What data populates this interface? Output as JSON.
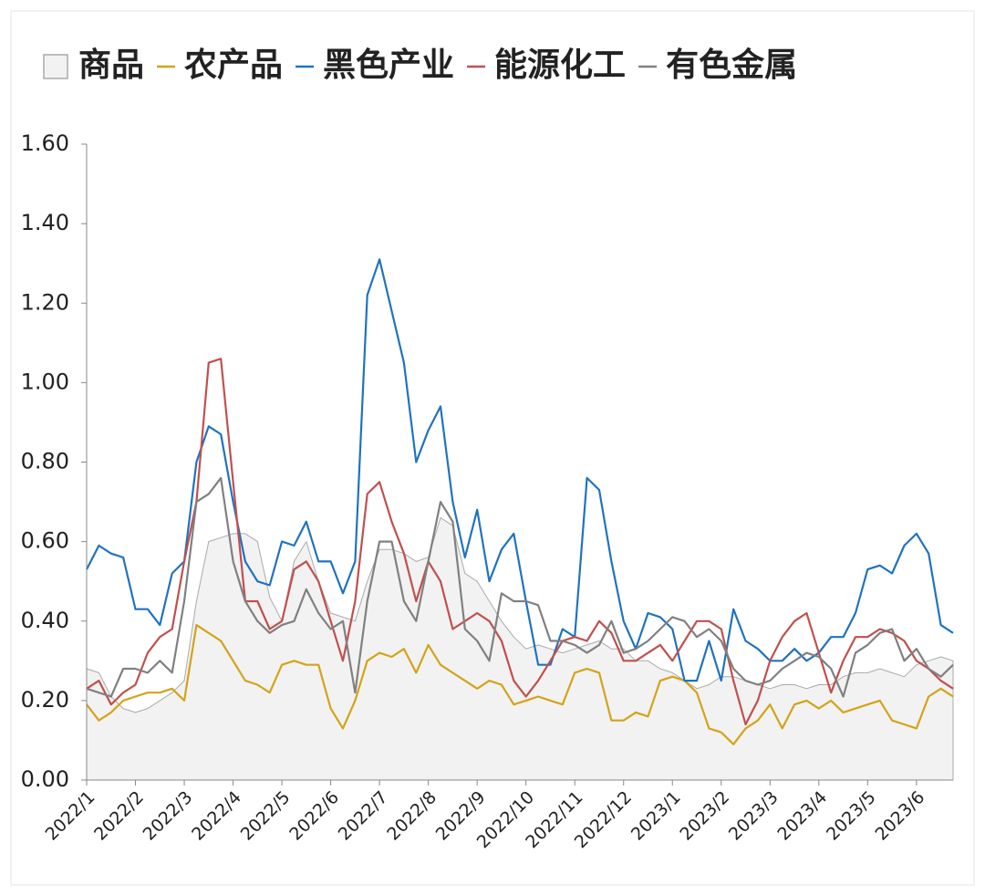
{
  "chart_data": {
    "type": "line",
    "categories": [
      "2022/1",
      null,
      null,
      null,
      "2022/2",
      null,
      null,
      null,
      "2022/3",
      null,
      null,
      null,
      "2022/4",
      null,
      null,
      null,
      "2022/5",
      null,
      null,
      null,
      "2022/6",
      null,
      null,
      null,
      "2022/7",
      null,
      null,
      null,
      "2022/8",
      null,
      null,
      null,
      "2022/9",
      null,
      null,
      null,
      "2022/10",
      null,
      null,
      null,
      "2022/11",
      null,
      null,
      null,
      "2022/12",
      null,
      null,
      null,
      "2023/1",
      null,
      null,
      null,
      "2023/2",
      null,
      null,
      null,
      "2023/3",
      null,
      null,
      null,
      "2023/4",
      null,
      null,
      null,
      "2023/5",
      null,
      null,
      null,
      "2023/6",
      null,
      null,
      null
    ],
    "series": [
      {
        "name": "商品",
        "kind": "area",
        "color": "#aaaaaa",
        "fill": "#f2f2f2",
        "values": [
          0.28,
          0.27,
          0.21,
          0.18,
          0.17,
          0.18,
          0.2,
          0.22,
          0.25,
          0.45,
          0.6,
          0.61,
          0.62,
          0.62,
          0.6,
          0.46,
          0.4,
          0.55,
          0.6,
          0.5,
          0.42,
          0.41,
          0.4,
          0.5,
          0.58,
          0.58,
          0.57,
          0.55,
          0.56,
          0.66,
          0.64,
          0.52,
          0.5,
          0.45,
          0.4,
          0.36,
          0.33,
          0.34,
          0.33,
          0.32,
          0.33,
          0.34,
          0.35,
          0.33,
          0.33,
          0.3,
          0.3,
          0.28,
          0.27,
          0.25,
          0.23,
          0.24,
          0.26,
          0.26,
          0.25,
          0.24,
          0.23,
          0.24,
          0.24,
          0.23,
          0.24,
          0.24,
          0.26,
          0.27,
          0.27,
          0.28,
          0.27,
          0.26,
          0.29,
          0.3,
          0.31,
          0.3
        ]
      },
      {
        "name": "农产品",
        "color": "#d4a318",
        "values": [
          0.19,
          0.15,
          0.17,
          0.2,
          0.21,
          0.22,
          0.22,
          0.23,
          0.2,
          0.39,
          0.37,
          0.35,
          0.3,
          0.25,
          0.24,
          0.22,
          0.29,
          0.3,
          0.29,
          0.29,
          0.18,
          0.13,
          0.2,
          0.3,
          0.32,
          0.31,
          0.33,
          0.27,
          0.34,
          0.29,
          0.27,
          0.25,
          0.23,
          0.25,
          0.24,
          0.19,
          0.2,
          0.21,
          0.2,
          0.19,
          0.27,
          0.28,
          0.27,
          0.15,
          0.15,
          0.17,
          0.16,
          0.25,
          0.26,
          0.25,
          0.22,
          0.13,
          0.12,
          0.09,
          0.13,
          0.15,
          0.19,
          0.13,
          0.19,
          0.2,
          0.18,
          0.2,
          0.17,
          0.18,
          0.19,
          0.2,
          0.15,
          0.14,
          0.13,
          0.21,
          0.23,
          0.21
        ]
      },
      {
        "name": "黑色产业",
        "color": "#1f73bf",
        "values": [
          0.53,
          0.59,
          0.57,
          0.56,
          0.43,
          0.43,
          0.39,
          0.52,
          0.55,
          0.8,
          0.89,
          0.87,
          0.7,
          0.55,
          0.5,
          0.49,
          0.6,
          0.59,
          0.65,
          0.55,
          0.55,
          0.47,
          0.55,
          1.22,
          1.31,
          1.18,
          1.05,
          0.8,
          0.88,
          0.94,
          0.7,
          0.56,
          0.68,
          0.5,
          0.58,
          0.62,
          0.45,
          0.29,
          0.29,
          0.38,
          0.36,
          0.76,
          0.73,
          0.55,
          0.4,
          0.33,
          0.42,
          0.41,
          0.38,
          0.25,
          0.25,
          0.35,
          0.25,
          0.43,
          0.35,
          0.33,
          0.3,
          0.3,
          0.33,
          0.3,
          0.32,
          0.36,
          0.36,
          0.42,
          0.53,
          0.54,
          0.52,
          0.59,
          0.62,
          0.57,
          0.39,
          0.37
        ]
      },
      {
        "name": "能源化工",
        "color": "#c0504d",
        "values": [
          0.23,
          0.25,
          0.19,
          0.22,
          0.24,
          0.32,
          0.36,
          0.38,
          0.55,
          0.7,
          1.05,
          1.06,
          0.75,
          0.45,
          0.45,
          0.38,
          0.4,
          0.53,
          0.55,
          0.5,
          0.4,
          0.3,
          0.45,
          0.72,
          0.75,
          0.65,
          0.57,
          0.45,
          0.55,
          0.5,
          0.38,
          0.4,
          0.42,
          0.4,
          0.35,
          0.25,
          0.21,
          0.25,
          0.3,
          0.35,
          0.36,
          0.35,
          0.4,
          0.37,
          0.3,
          0.3,
          0.32,
          0.34,
          0.3,
          0.35,
          0.4,
          0.4,
          0.38,
          0.25,
          0.14,
          0.2,
          0.3,
          0.36,
          0.4,
          0.42,
          0.32,
          0.22,
          0.3,
          0.36,
          0.36,
          0.38,
          0.37,
          0.35,
          0.3,
          0.28,
          0.25,
          0.23
        ]
      },
      {
        "name": "有色金属",
        "color": "#808080",
        "values": [
          0.23,
          0.22,
          0.21,
          0.28,
          0.28,
          0.27,
          0.3,
          0.27,
          0.45,
          0.7,
          0.72,
          0.76,
          0.55,
          0.45,
          0.4,
          0.37,
          0.39,
          0.4,
          0.48,
          0.42,
          0.38,
          0.4,
          0.22,
          0.45,
          0.6,
          0.6,
          0.45,
          0.4,
          0.55,
          0.7,
          0.65,
          0.38,
          0.35,
          0.3,
          0.47,
          0.45,
          0.45,
          0.44,
          0.35,
          0.35,
          0.34,
          0.32,
          0.34,
          0.4,
          0.32,
          0.33,
          0.35,
          0.38,
          0.41,
          0.4,
          0.36,
          0.38,
          0.35,
          0.28,
          0.25,
          0.24,
          0.25,
          0.28,
          0.3,
          0.32,
          0.31,
          0.28,
          0.21,
          0.32,
          0.34,
          0.37,
          0.38,
          0.3,
          0.33,
          0.28,
          0.26,
          0.29
        ]
      }
    ],
    "ylim": [
      0,
      1.6
    ],
    "yticks": [
      {
        "value": 0,
        "label": "0.00"
      },
      {
        "value": 0.2,
        "label": "0.20"
      },
      {
        "value": 0.4,
        "label": "0.40"
      },
      {
        "value": 0.6,
        "label": "0.60"
      },
      {
        "value": 0.8,
        "label": "0.80"
      },
      {
        "value": 1.0,
        "label": "1.00"
      },
      {
        "value": 1.2,
        "label": "1.20"
      },
      {
        "value": 1.4,
        "label": "1.40"
      },
      {
        "value": 1.6,
        "label": "1.60"
      }
    ],
    "legend": "top"
  }
}
